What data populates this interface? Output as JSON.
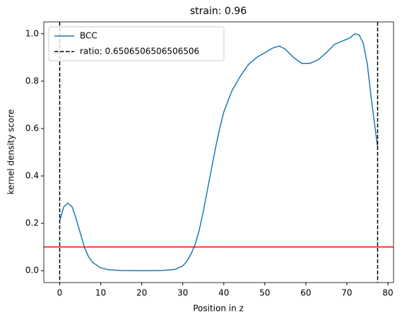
{
  "chart_data": {
    "type": "line",
    "title": "strain: 0.96",
    "xlabel": "Position in z",
    "ylabel": "kernel density score",
    "x": [
      0,
      1,
      2,
      3,
      4,
      5,
      6,
      7,
      8,
      10,
      12,
      15,
      20,
      25,
      28,
      30,
      31,
      32,
      33,
      34,
      35,
      36,
      37,
      38,
      39,
      40,
      42,
      44,
      46,
      48,
      50,
      52,
      53.5,
      55,
      57,
      59,
      61,
      63,
      65,
      67,
      69,
      70.5,
      72,
      73,
      74,
      75,
      76,
      77.5
    ],
    "series": [
      {
        "name": "BCC",
        "color": "#1f77b4",
        "values": [
          0.21,
          0.27,
          0.285,
          0.27,
          0.22,
          0.16,
          0.1,
          0.06,
          0.035,
          0.012,
          0.004,
          0.001,
          0,
          0.001,
          0.005,
          0.02,
          0.04,
          0.07,
          0.11,
          0.17,
          0.25,
          0.34,
          0.43,
          0.52,
          0.6,
          0.67,
          0.76,
          0.82,
          0.87,
          0.9,
          0.92,
          0.94,
          0.948,
          0.935,
          0.9,
          0.875,
          0.875,
          0.89,
          0.92,
          0.955,
          0.97,
          0.98,
          1.0,
          0.995,
          0.96,
          0.87,
          0.72,
          0.52
        ]
      }
    ],
    "vlines": {
      "label": "ratio: 0.6506506506506506",
      "x": [
        0,
        77.5
      ],
      "color": "#000000"
    },
    "hline": {
      "y": 0.1,
      "color": "#ff0000"
    },
    "xlim": [
      -3.875,
      81.375
    ],
    "ylim": [
      -0.05,
      1.05
    ],
    "xticks": [
      0,
      10,
      20,
      30,
      40,
      50,
      60,
      70,
      80
    ],
    "yticks": [
      {
        "value": 0,
        "label": "0.0"
      },
      0.2,
      0.4,
      0.6,
      0.8,
      {
        "value": 1,
        "label": "1.0"
      }
    ],
    "legend": "upper left"
  }
}
